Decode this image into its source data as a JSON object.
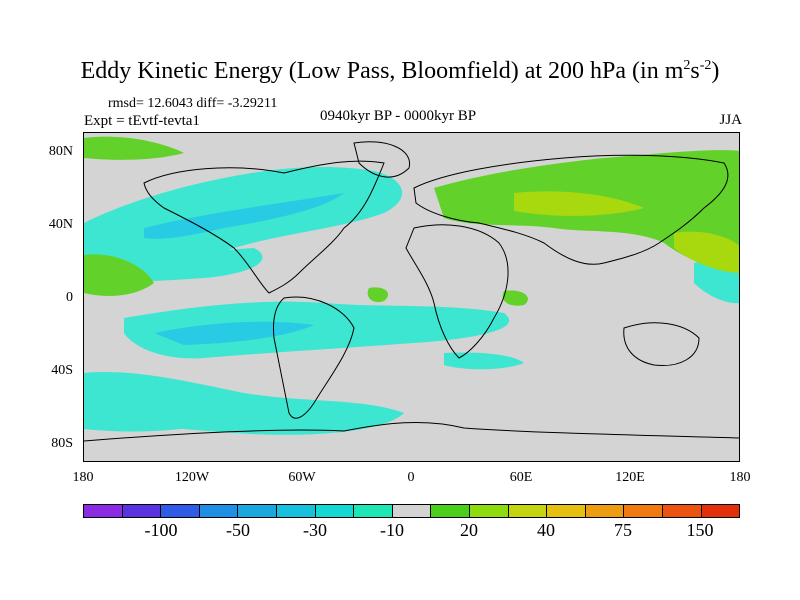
{
  "title": {
    "main": "Eddy Kinetic Energy (Low Pass, Bloomfield) at 200 hPa (in m",
    "sup1": "2",
    "mid": "s",
    "sup2": "-2",
    "end": ")"
  },
  "stats": "rmsd= 12.6043 diff= -3.29211",
  "experiment": "Expt = tEvtf-tevta1",
  "period": "0940kyr BP - 0000kyr BP",
  "season": "JJA",
  "lat_ticks": [
    "80N",
    "40N",
    "0",
    "40S",
    "80S"
  ],
  "lon_ticks": [
    "180",
    "120W",
    "60W",
    "0",
    "60E",
    "120E",
    "180"
  ],
  "colorbar": {
    "colors": [
      "#8b2be2",
      "#5a32e0",
      "#2f5ce6",
      "#1f8fe6",
      "#1aa7e0",
      "#17c0dc",
      "#14d8d2",
      "#1ee6b4",
      "#d3d3d3",
      "#4cce1e",
      "#8edc10",
      "#c4d40e",
      "#e6c010",
      "#ee9c12",
      "#ef7a10",
      "#ec5210",
      "#e2300a"
    ],
    "labels": [
      "-100",
      "-50",
      "-30",
      "-10",
      "20",
      "40",
      "75",
      "150"
    ]
  },
  "legend_colors": {
    "negative": "#3de6d0",
    "negative_strong": "#27cbe3",
    "positive": "#62d22a",
    "positive_strong": "#a8d80e",
    "neutral": "#d4d4d4"
  }
}
